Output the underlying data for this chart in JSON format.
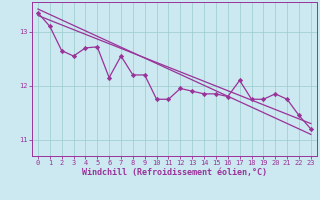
{
  "xlabel": "Windchill (Refroidissement éolien,°C)",
  "bg_color": "#cce8f0",
  "grid_color": "#99cccc",
  "line_color": "#993399",
  "xlim": [
    -0.5,
    23.5
  ],
  "ylim": [
    10.7,
    13.55
  ],
  "yticks": [
    11,
    12,
    13
  ],
  "xticks": [
    0,
    1,
    2,
    3,
    4,
    5,
    6,
    7,
    8,
    9,
    10,
    11,
    12,
    13,
    14,
    15,
    16,
    17,
    18,
    19,
    20,
    21,
    22,
    23
  ],
  "data_x": [
    0,
    1,
    2,
    3,
    4,
    5,
    6,
    7,
    8,
    9,
    10,
    11,
    12,
    13,
    14,
    15,
    16,
    17,
    18,
    19,
    20,
    21,
    22,
    23
  ],
  "data_y": [
    13.35,
    13.1,
    12.65,
    12.55,
    12.7,
    12.72,
    12.15,
    12.55,
    12.2,
    12.2,
    11.75,
    11.75,
    11.95,
    11.9,
    11.85,
    11.85,
    11.8,
    12.1,
    11.75,
    11.75,
    11.85,
    11.75,
    11.45,
    11.2
  ],
  "trend1_x": [
    0,
    23
  ],
  "trend1_y": [
    13.42,
    11.1
  ],
  "trend2_x": [
    0,
    23
  ],
  "trend2_y": [
    13.3,
    11.3
  ],
  "linewidth": 0.9,
  "tick_fontsize": 5.0,
  "label_fontsize": 6.0
}
